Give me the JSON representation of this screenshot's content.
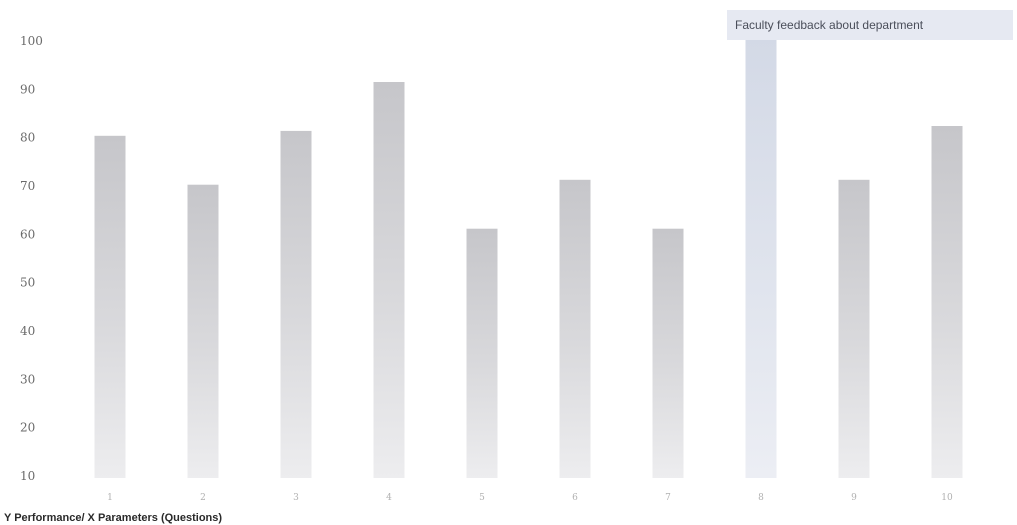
{
  "chart_data": {
    "type": "bar",
    "title": "Faculty feedback about department",
    "xlabel": "Y Performance/ X Parameters (Questions)",
    "ylabel": "",
    "categories": [
      "1",
      "2",
      "3",
      "4",
      "5",
      "6",
      "7",
      "8",
      "9",
      "10"
    ],
    "values": [
      80,
      70,
      81,
      91,
      61,
      71,
      61,
      100,
      71,
      82
    ],
    "ylim": [
      10,
      100
    ],
    "yticks": [
      "100",
      "90",
      "80",
      "70",
      "60",
      "50",
      "40",
      "30",
      "20",
      "10"
    ],
    "grid": false,
    "legend": "none",
    "colors": {
      "bar_dark": "#c9c9cd",
      "bar_light": "#ececef",
      "bar_highlight_light": "#eef1f8",
      "bar_highlight_dark": "#d6dbe8",
      "title_bg": "#e6e9f2"
    }
  }
}
